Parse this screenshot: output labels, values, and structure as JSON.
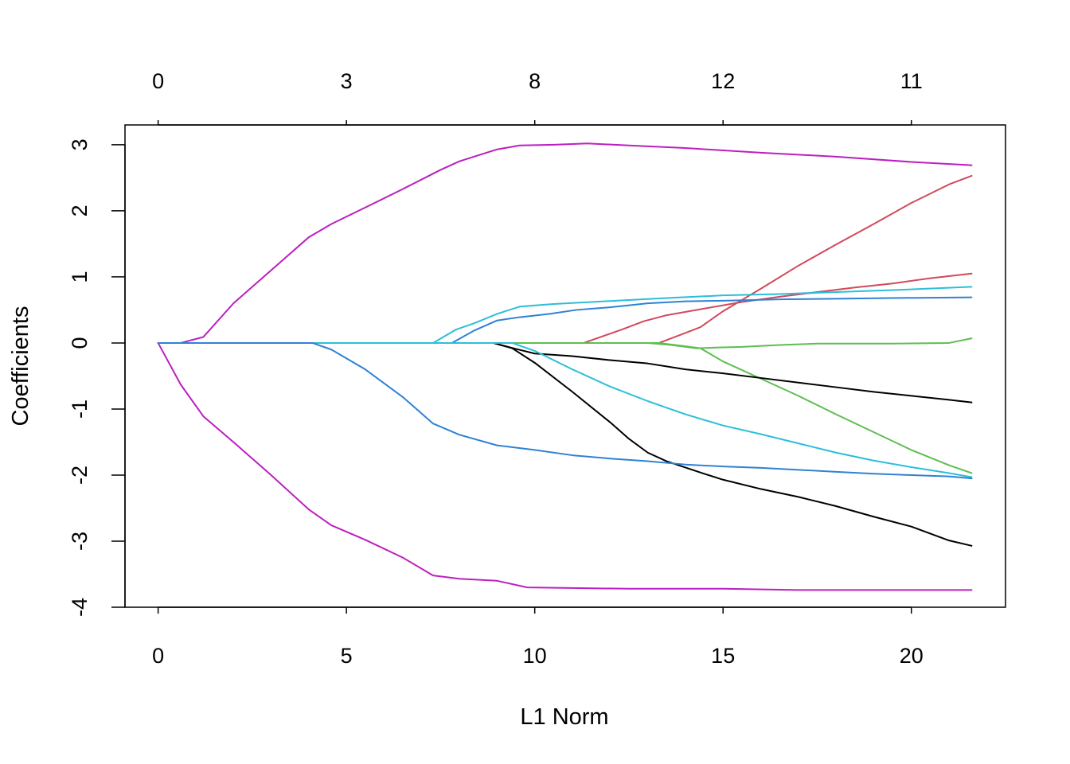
{
  "chart_data": {
    "type": "line",
    "xlabel": "L1 Norm",
    "ylabel": "Coefficients",
    "xlim": [
      -0.88,
      22.5
    ],
    "ylim": [
      -4,
      3.3
    ],
    "x_ticks": [
      0,
      5,
      10,
      15,
      20
    ],
    "x_tick_labels": [
      "0",
      "5",
      "10",
      "15",
      "20"
    ],
    "y_ticks": [
      -4,
      -3,
      -2,
      -1,
      0,
      1,
      2,
      3
    ],
    "y_tick_labels": [
      "-4",
      "-3",
      "-2",
      "-1",
      "0",
      "1",
      "2",
      "3"
    ],
    "top_axis": {
      "ticks": [
        0,
        5,
        10,
        15,
        20
      ],
      "labels": [
        "0",
        "3",
        "8",
        "12",
        "11"
      ]
    },
    "grid": false,
    "legend": "none",
    "series": [
      {
        "color": "#BC1FBF",
        "points": [
          [
            0,
            0
          ],
          [
            0.6,
            0
          ],
          [
            1.2,
            0.09
          ],
          [
            2,
            0.6
          ],
          [
            3,
            1.1
          ],
          [
            4,
            1.6
          ],
          [
            4.6,
            1.8
          ],
          [
            5.5,
            2.05
          ],
          [
            6.5,
            2.33
          ],
          [
            7.5,
            2.62
          ],
          [
            8,
            2.75
          ],
          [
            9,
            2.93
          ],
          [
            9.6,
            2.99
          ],
          [
            10.5,
            3.0
          ],
          [
            11.4,
            3.02
          ],
          [
            12.5,
            2.99
          ],
          [
            14,
            2.95
          ],
          [
            16,
            2.88
          ],
          [
            18,
            2.82
          ],
          [
            20,
            2.74
          ],
          [
            21.6,
            2.69
          ]
        ]
      },
      {
        "color": "#BC1FBF",
        "points": [
          [
            0,
            0
          ],
          [
            0.6,
            -0.63
          ],
          [
            1.2,
            -1.11
          ],
          [
            2,
            -1.5
          ],
          [
            3,
            -2.0
          ],
          [
            4,
            -2.52
          ],
          [
            4.6,
            -2.76
          ],
          [
            5.5,
            -2.98
          ],
          [
            6.5,
            -3.25
          ],
          [
            7.3,
            -3.52
          ],
          [
            8,
            -3.57
          ],
          [
            9,
            -3.6
          ],
          [
            9.8,
            -3.7
          ],
          [
            11,
            -3.71
          ],
          [
            12.5,
            -3.72
          ],
          [
            15,
            -3.72
          ],
          [
            17,
            -3.74
          ],
          [
            21.6,
            -3.74
          ]
        ]
      },
      {
        "color": "#D1495B",
        "points": [
          [
            0,
            0
          ],
          [
            13.3,
            0
          ],
          [
            13.9,
            0.13
          ],
          [
            14.4,
            0.24
          ],
          [
            15,
            0.48
          ],
          [
            16,
            0.82
          ],
          [
            17,
            1.17
          ],
          [
            18,
            1.49
          ],
          [
            19,
            1.8
          ],
          [
            20,
            2.12
          ],
          [
            21,
            2.4
          ],
          [
            21.6,
            2.53
          ]
        ]
      },
      {
        "color": "#D1495B",
        "points": [
          [
            0,
            0
          ],
          [
            11.3,
            0
          ],
          [
            12.3,
            0.2
          ],
          [
            12.9,
            0.33
          ],
          [
            13.5,
            0.42
          ],
          [
            14.5,
            0.52
          ],
          [
            15.5,
            0.62
          ],
          [
            16.5,
            0.7
          ],
          [
            17.5,
            0.77
          ],
          [
            18.5,
            0.84
          ],
          [
            19.5,
            0.9
          ],
          [
            20.5,
            0.98
          ],
          [
            21.6,
            1.05
          ]
        ]
      },
      {
        "color": "#2CBEDA",
        "points": [
          [
            0,
            0
          ],
          [
            7.3,
            0
          ],
          [
            7.9,
            0.2
          ],
          [
            8.4,
            0.3
          ],
          [
            9,
            0.44
          ],
          [
            9.6,
            0.55
          ],
          [
            10.5,
            0.59
          ],
          [
            11.5,
            0.62
          ],
          [
            12.5,
            0.65
          ],
          [
            13.5,
            0.68
          ],
          [
            15,
            0.72
          ],
          [
            16.5,
            0.74
          ],
          [
            18,
            0.77
          ],
          [
            19.5,
            0.8
          ],
          [
            21.6,
            0.85
          ]
        ]
      },
      {
        "color": "#2F82D4",
        "points": [
          [
            0,
            0
          ],
          [
            7.8,
            0
          ],
          [
            8.4,
            0.19
          ],
          [
            9,
            0.34
          ],
          [
            9.6,
            0.39
          ],
          [
            10.4,
            0.44
          ],
          [
            11.1,
            0.5
          ],
          [
            12,
            0.54
          ],
          [
            13,
            0.6
          ],
          [
            14,
            0.63
          ],
          [
            15,
            0.64
          ],
          [
            16.5,
            0.66
          ],
          [
            18,
            0.67
          ],
          [
            19.5,
            0.68
          ],
          [
            21.6,
            0.69
          ]
        ]
      },
      {
        "color": "#5DBE50",
        "points": [
          [
            0,
            0
          ],
          [
            13,
            0
          ],
          [
            13.6,
            -0.03
          ],
          [
            14.3,
            -0.08
          ],
          [
            14.8,
            -0.07
          ],
          [
            15.5,
            -0.06
          ],
          [
            16.5,
            -0.03
          ],
          [
            17.5,
            -0.01
          ],
          [
            18.5,
            -0.01
          ],
          [
            19.5,
            -0.01
          ],
          [
            21,
            0
          ],
          [
            21.6,
            0.07
          ]
        ]
      },
      {
        "color": "#5DBE50",
        "points": [
          [
            0,
            0
          ],
          [
            13.3,
            0
          ],
          [
            14,
            -0.05
          ],
          [
            14.4,
            -0.08
          ],
          [
            15,
            -0.28
          ],
          [
            16,
            -0.54
          ],
          [
            17,
            -0.8
          ],
          [
            18,
            -1.08
          ],
          [
            19,
            -1.35
          ],
          [
            20,
            -1.62
          ],
          [
            21,
            -1.85
          ],
          [
            21.6,
            -1.97
          ]
        ]
      },
      {
        "color": "#000000",
        "points": [
          [
            0,
            0
          ],
          [
            8.9,
            0
          ],
          [
            9.5,
            -0.09
          ],
          [
            10,
            -0.16
          ],
          [
            11,
            -0.2
          ],
          [
            12,
            -0.26
          ],
          [
            13,
            -0.31
          ],
          [
            14,
            -0.4
          ],
          [
            15,
            -0.46
          ],
          [
            16,
            -0.53
          ],
          [
            17,
            -0.6
          ],
          [
            18,
            -0.67
          ],
          [
            19,
            -0.74
          ],
          [
            20,
            -0.8
          ],
          [
            21,
            -0.86
          ],
          [
            21.6,
            -0.9
          ]
        ]
      },
      {
        "color": "#000000",
        "points": [
          [
            0,
            0
          ],
          [
            8.9,
            0
          ],
          [
            9.4,
            -0.08
          ],
          [
            10,
            -0.3
          ],
          [
            11,
            -0.74
          ],
          [
            12,
            -1.2
          ],
          [
            12.5,
            -1.45
          ],
          [
            13,
            -1.66
          ],
          [
            13.5,
            -1.79
          ],
          [
            14.5,
            -1.98
          ],
          [
            15,
            -2.07
          ],
          [
            16,
            -2.21
          ],
          [
            17,
            -2.33
          ],
          [
            18,
            -2.47
          ],
          [
            19,
            -2.63
          ],
          [
            20,
            -2.78
          ],
          [
            21,
            -2.99
          ],
          [
            21.6,
            -3.07
          ]
        ]
      },
      {
        "color": "#2CBEDA",
        "points": [
          [
            0,
            0
          ],
          [
            9.4,
            0
          ],
          [
            10,
            -0.12
          ],
          [
            11,
            -0.4
          ],
          [
            12,
            -0.66
          ],
          [
            13,
            -0.88
          ],
          [
            14,
            -1.08
          ],
          [
            15,
            -1.25
          ],
          [
            16,
            -1.38
          ],
          [
            17,
            -1.52
          ],
          [
            18,
            -1.66
          ],
          [
            19,
            -1.78
          ],
          [
            20,
            -1.88
          ],
          [
            21,
            -1.97
          ],
          [
            21.6,
            -2.03
          ]
        ]
      },
      {
        "color": "#2F82D4",
        "points": [
          [
            0,
            0
          ],
          [
            4.1,
            0
          ],
          [
            4.6,
            -0.1
          ],
          [
            5.5,
            -0.4
          ],
          [
            6.5,
            -0.82
          ],
          [
            7.3,
            -1.22
          ],
          [
            8,
            -1.39
          ],
          [
            9,
            -1.55
          ],
          [
            10,
            -1.62
          ],
          [
            11,
            -1.7
          ],
          [
            12,
            -1.75
          ],
          [
            13,
            -1.79
          ],
          [
            14,
            -1.84
          ],
          [
            15,
            -1.87
          ],
          [
            16,
            -1.89
          ],
          [
            17,
            -1.92
          ],
          [
            18,
            -1.95
          ],
          [
            19,
            -1.98
          ],
          [
            20,
            -2.0
          ],
          [
            21,
            -2.02
          ],
          [
            21.6,
            -2.05
          ]
        ]
      }
    ]
  }
}
